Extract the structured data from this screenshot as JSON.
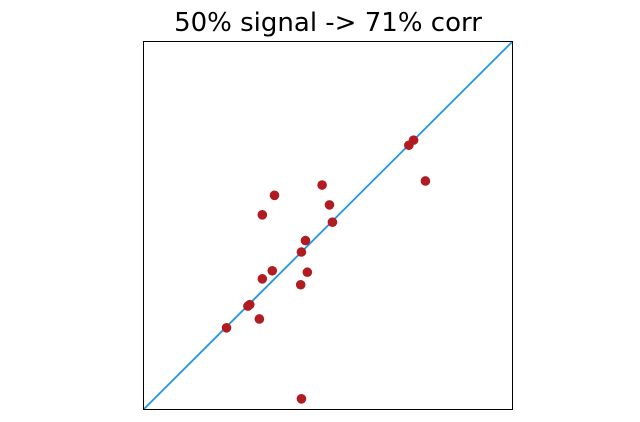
{
  "chart_data": {
    "type": "scatter",
    "title": "50% signal -> 71% corr",
    "xlabel": "",
    "ylabel": "",
    "xlim": [
      0,
      1
    ],
    "ylim": [
      0,
      1
    ],
    "grid": false,
    "axes_ticks": false,
    "identity_line": {
      "from": [
        0,
        0
      ],
      "to": [
        1,
        1
      ],
      "color": "#2196e8"
    },
    "point_color": "#b01c22",
    "points": [
      {
        "x": 0.225,
        "y": 0.222
      },
      {
        "x": 0.283,
        "y": 0.281
      },
      {
        "x": 0.288,
        "y": 0.285
      },
      {
        "x": 0.314,
        "y": 0.246
      },
      {
        "x": 0.322,
        "y": 0.355
      },
      {
        "x": 0.349,
        "y": 0.377
      },
      {
        "x": 0.426,
        "y": 0.339
      },
      {
        "x": 0.444,
        "y": 0.373
      },
      {
        "x": 0.428,
        "y": 0.428
      },
      {
        "x": 0.439,
        "y": 0.459
      },
      {
        "x": 0.512,
        "y": 0.509
      },
      {
        "x": 0.504,
        "y": 0.556
      },
      {
        "x": 0.484,
        "y": 0.61
      },
      {
        "x": 0.322,
        "y": 0.529
      },
      {
        "x": 0.355,
        "y": 0.582
      },
      {
        "x": 0.719,
        "y": 0.718
      },
      {
        "x": 0.732,
        "y": 0.732
      },
      {
        "x": 0.764,
        "y": 0.621
      },
      {
        "x": 0.428,
        "y": 0.029
      }
    ]
  }
}
